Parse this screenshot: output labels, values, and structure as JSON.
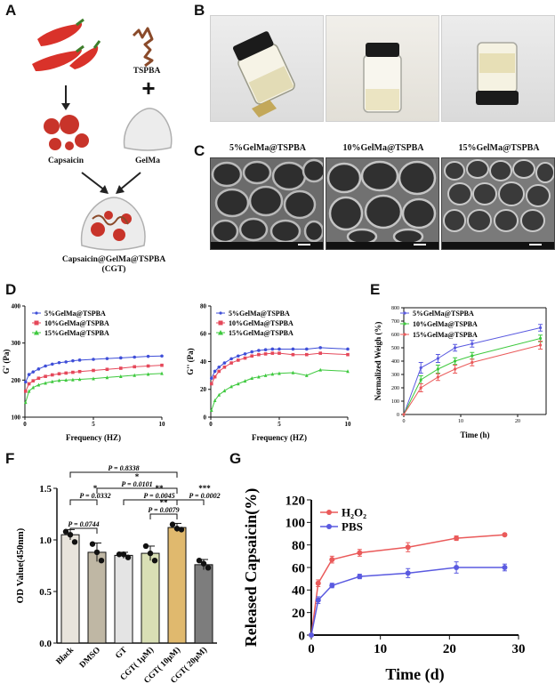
{
  "panels": [
    "A",
    "B",
    "C",
    "D",
    "E",
    "F",
    "G"
  ],
  "panel_a": {
    "tspba": "TSPBA",
    "plus": "+",
    "capsaicin": "Capsaicin",
    "gelma": "GelMa",
    "product": "Capsaicin@GelMa@TSPBA",
    "abbrev": "(CGT)"
  },
  "panel_c": {
    "titles": [
      "5%GelMa@TSPBA",
      "10%GelMa@TSPBA",
      "15%GelMa@TSPBA"
    ]
  },
  "colors": {
    "blue": "#3f4fd8",
    "red": "#e5485a",
    "green": "#3ec93e",
    "g_red": "#ea5a5a",
    "g_blue": "#5a5ae0"
  },
  "chart_data": [
    {
      "id": "D1",
      "type": "line",
      "xlabel": "Frequency (HZ)",
      "ylabel": "G' (Pa)",
      "xlim": [
        0,
        10
      ],
      "ylim": [
        100,
        400
      ],
      "xticks": [
        0,
        5,
        10
      ],
      "yticks": [
        100,
        200,
        300,
        400
      ],
      "series": [
        {
          "name": "5%GelMa@TSPBA",
          "color": "#3f4fd8",
          "marker": "dot",
          "x": [
            0.05,
            0.3,
            0.6,
            1,
            1.5,
            2,
            2.5,
            3,
            3.5,
            4,
            5,
            6,
            7,
            8,
            9,
            10
          ],
          "y": [
            195,
            215,
            222,
            230,
            238,
            243,
            247,
            249,
            252,
            254,
            256,
            258,
            260,
            262,
            264,
            265
          ]
        },
        {
          "name": "10%GelMa@TSPBA",
          "color": "#e5485a",
          "marker": "square",
          "x": [
            0.05,
            0.3,
            0.6,
            1,
            1.5,
            2,
            2.5,
            3,
            3.5,
            4,
            5,
            6,
            7,
            8,
            9,
            10
          ],
          "y": [
            170,
            190,
            198,
            205,
            210,
            214,
            217,
            219,
            221,
            223,
            226,
            229,
            232,
            236,
            238,
            240
          ]
        },
        {
          "name": "15%GelMa@TSPBA",
          "color": "#3ec93e",
          "marker": "triangle",
          "x": [
            0.05,
            0.3,
            0.6,
            1,
            1.5,
            2,
            2.5,
            3,
            3.5,
            4,
            5,
            6,
            7,
            8,
            9,
            10
          ],
          "y": [
            140,
            170,
            180,
            187,
            192,
            196,
            199,
            200,
            201,
            202,
            204,
            207,
            210,
            213,
            216,
            218
          ]
        }
      ]
    },
    {
      "id": "D2",
      "type": "line",
      "xlabel": "Frequency (HZ)",
      "ylabel": "G'' (Pa)",
      "xlim": [
        0,
        10
      ],
      "ylim": [
        0,
        80
      ],
      "xticks": [
        0,
        5,
        10
      ],
      "yticks": [
        0,
        20,
        40,
        60,
        80
      ],
      "series": [
        {
          "name": "5%GelMa@TSPBA",
          "color": "#3f4fd8",
          "marker": "dot",
          "x": [
            0.05,
            0.3,
            0.6,
            1,
            1.5,
            2,
            2.5,
            3,
            3.5,
            4,
            4.5,
            5,
            6,
            7,
            8,
            10
          ],
          "y": [
            28,
            33,
            36,
            39,
            42,
            44,
            45.5,
            47,
            48,
            48.5,
            49,
            49,
            49,
            49,
            50,
            49
          ]
        },
        {
          "name": "10%GelMa@TSPBA",
          "color": "#e5485a",
          "marker": "square",
          "x": [
            0.05,
            0.3,
            0.6,
            1,
            1.5,
            2,
            2.5,
            3,
            3.5,
            4,
            4.5,
            5,
            6,
            7,
            8,
            10
          ],
          "y": [
            24,
            29,
            33,
            36,
            39,
            41,
            42.5,
            44,
            45,
            45.5,
            46,
            46,
            45,
            45,
            46,
            45
          ]
        },
        {
          "name": "15%GelMa@TSPBA",
          "color": "#3ec93e",
          "marker": "triangle",
          "x": [
            0.05,
            0.3,
            0.6,
            1,
            1.5,
            2,
            2.5,
            3,
            3.5,
            4,
            4.5,
            5,
            6,
            7,
            8,
            10
          ],
          "y": [
            5,
            12,
            16,
            19,
            22,
            24,
            26,
            28,
            29,
            30,
            31,
            31.5,
            32,
            30,
            34,
            33
          ]
        }
      ]
    },
    {
      "id": "E",
      "type": "line",
      "xlabel": "Time (h)",
      "ylabel": "Normalized Weigh (%)",
      "xlim": [
        0,
        25
      ],
      "ylim": [
        0,
        800
      ],
      "xticks": [
        0,
        10,
        20
      ],
      "yticks": [
        0,
        100,
        200,
        300,
        400,
        500,
        600,
        700,
        800
      ],
      "series": [
        {
          "name": "5%GelMa@TSPBA",
          "color": "#5a5ae0",
          "x": [
            0,
            3,
            6,
            9,
            12,
            24
          ],
          "y": [
            0,
            350,
            420,
            500,
            530,
            650
          ],
          "err": [
            0,
            40,
            30,
            25,
            25,
            25
          ]
        },
        {
          "name": "10%GelMa@TSPBA",
          "color": "#3ec93e",
          "x": [
            0,
            3,
            6,
            9,
            12,
            24
          ],
          "y": [
            0,
            260,
            340,
            400,
            440,
            570
          ],
          "err": [
            0,
            30,
            30,
            25,
            25,
            25
          ]
        },
        {
          "name": "15%GelMa@TSPBA",
          "color": "#ea5a5a",
          "x": [
            0,
            3,
            6,
            9,
            12,
            24
          ],
          "y": [
            0,
            200,
            280,
            340,
            390,
            520
          ],
          "err": [
            0,
            30,
            25,
            30,
            25,
            30
          ]
        }
      ]
    },
    {
      "id": "F",
      "type": "bar",
      "ylabel": "OD Value(450nm)",
      "ylim": [
        0,
        1.5
      ],
      "yticks": [
        0.0,
        0.5,
        1.0,
        1.5
      ],
      "categories": [
        "Black",
        "DMSO",
        "GT",
        "CGT( 1μM)",
        "CGT( 10μM)",
        "CGT( 20μM)"
      ],
      "values": [
        1.05,
        0.88,
        0.85,
        0.87,
        1.12,
        0.76
      ],
      "errors": [
        0.05,
        0.09,
        0.03,
        0.07,
        0.04,
        0.05
      ],
      "points": [
        [
          1.08,
          1.05,
          0.98
        ],
        [
          0.96,
          0.88,
          0.8
        ],
        [
          0.86,
          0.86,
          0.83
        ],
        [
          0.94,
          0.87,
          0.8
        ],
        [
          1.15,
          1.11,
          1.1
        ],
        [
          0.8,
          0.77,
          0.73
        ]
      ],
      "bar_colors": [
        "#e8e4dc",
        "#bfb7a4",
        "#e4e4e4",
        "#d9dfb5",
        "#e0b96e",
        "#7d7d7d"
      ],
      "annotations": [
        {
          "text": "P = 0.8338",
          "from": 0,
          "to": 4
        },
        {
          "text": "*",
          "from": 1,
          "to": 4
        },
        {
          "text": "P = 0.0101",
          "from": 1,
          "to": 4
        },
        {
          "text": "*",
          "from": 0,
          "to": 1
        },
        {
          "text": "P = 0.0332",
          "from": 0,
          "to": 1
        },
        {
          "text": "**",
          "from": 2,
          "to": 4
        },
        {
          "text": "P = 0.0045",
          "from": 2,
          "to": 4
        },
        {
          "text": "***",
          "from": 4,
          "to": 5
        },
        {
          "text": "P = 0.0002",
          "from": 4,
          "to": 5
        },
        {
          "text": "**",
          "from": 3,
          "to": 4
        },
        {
          "text": "P = 0.0079",
          "from": 3,
          "to": 4
        },
        {
          "text": "P = 0.0744",
          "from": 0,
          "to": 1
        }
      ]
    },
    {
      "id": "G",
      "type": "line",
      "xlabel": "Time (d)",
      "ylabel": "Released Capsaicin(%)",
      "xlim": [
        0,
        30
      ],
      "ylim": [
        0,
        120
      ],
      "xticks": [
        0,
        10,
        20,
        30
      ],
      "yticks": [
        0,
        20,
        40,
        60,
        80,
        100,
        120
      ],
      "series": [
        {
          "name": "H₂O₂",
          "color": "#ea5a5a",
          "x": [
            0,
            1,
            3,
            7,
            14,
            21,
            28
          ],
          "y": [
            0,
            46,
            67,
            73,
            78,
            86,
            89
          ],
          "err": [
            0,
            3,
            3,
            3,
            4,
            2,
            1
          ]
        },
        {
          "name": "PBS",
          "color": "#5a5ae0",
          "x": [
            0,
            1,
            3,
            7,
            14,
            21,
            28
          ],
          "y": [
            0,
            31,
            44,
            52,
            55,
            60,
            60
          ],
          "err": [
            0,
            3,
            2,
            2,
            4,
            5,
            3
          ]
        }
      ]
    }
  ]
}
